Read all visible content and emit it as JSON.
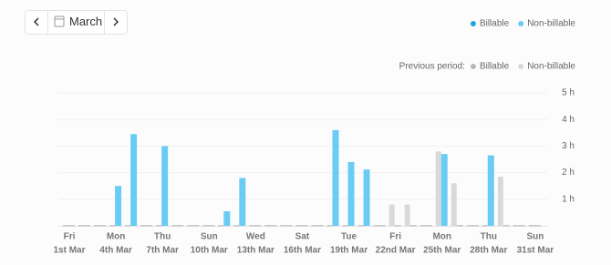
{
  "date_picker": {
    "label": "March"
  },
  "chart_data": {
    "type": "bar",
    "weekdays": [
      "Fri",
      null,
      null,
      "Mon",
      null,
      null,
      "Thu",
      null,
      null,
      "Sun",
      null,
      null,
      "Wed",
      null,
      null,
      "Sat",
      null,
      null,
      "Tue",
      null,
      null,
      "Fri",
      null,
      null,
      "Mon",
      null,
      null,
      "Thu",
      null,
      null,
      "Sun"
    ],
    "categories": [
      "1st Mar",
      null,
      null,
      "4th Mar",
      null,
      null,
      "7th Mar",
      null,
      null,
      "10th Mar",
      null,
      null,
      "13th Mar",
      null,
      null,
      "16th Mar",
      null,
      null,
      "19th Mar",
      null,
      null,
      "22nd Mar",
      null,
      null,
      "25th Mar",
      null,
      null,
      "28th Mar",
      null,
      null,
      "31st Mar"
    ],
    "series": [
      {
        "name": "Billable",
        "color": "#1ea5de",
        "values": [
          0,
          0,
          0,
          0,
          0,
          0,
          0,
          0,
          0,
          0,
          0,
          0,
          0,
          0,
          0,
          0,
          0,
          0,
          0,
          0,
          0,
          0,
          0,
          0,
          0,
          0,
          0,
          0,
          0,
          0,
          0
        ]
      },
      {
        "name": "Non-billable",
        "color": "#6accf5",
        "values": [
          0,
          0,
          0,
          1.5,
          3.45,
          0,
          3.0,
          0,
          0,
          0,
          0.55,
          1.8,
          0,
          0,
          0,
          0,
          0,
          3.6,
          2.4,
          2.12,
          0,
          0,
          0,
          0,
          2.7,
          0,
          0,
          2.65,
          0,
          0,
          0
        ]
      }
    ],
    "previous_label": "Previous period:",
    "previous_series": [
      {
        "name": "Billable",
        "color": "#b8b8b8",
        "values": [
          0,
          0,
          0,
          0,
          0,
          0,
          0,
          0,
          0,
          0,
          0,
          0,
          0,
          0,
          0,
          0,
          0,
          0,
          0,
          0,
          0,
          0,
          0,
          0,
          0,
          0,
          0,
          0,
          0,
          0,
          0
        ]
      },
      {
        "name": "Non-billable",
        "color": "#d9d9d9",
        "values": [
          0,
          0,
          0,
          0,
          0,
          0,
          0,
          0,
          0,
          0,
          0,
          0,
          0,
          0,
          0,
          0,
          0,
          0,
          0,
          0,
          0,
          0.8,
          0.8,
          0,
          2.8,
          1.6,
          0,
          0,
          1.85,
          0,
          0
        ]
      }
    ],
    "ylim": [
      0,
      5
    ],
    "yticks": [
      {
        "value": 1,
        "label": "1 h"
      },
      {
        "value": 2,
        "label": "2 h"
      },
      {
        "value": 3,
        "label": "3 h"
      },
      {
        "value": 4,
        "label": "4 h"
      },
      {
        "value": 5,
        "label": "5 h"
      }
    ],
    "grid": true
  }
}
